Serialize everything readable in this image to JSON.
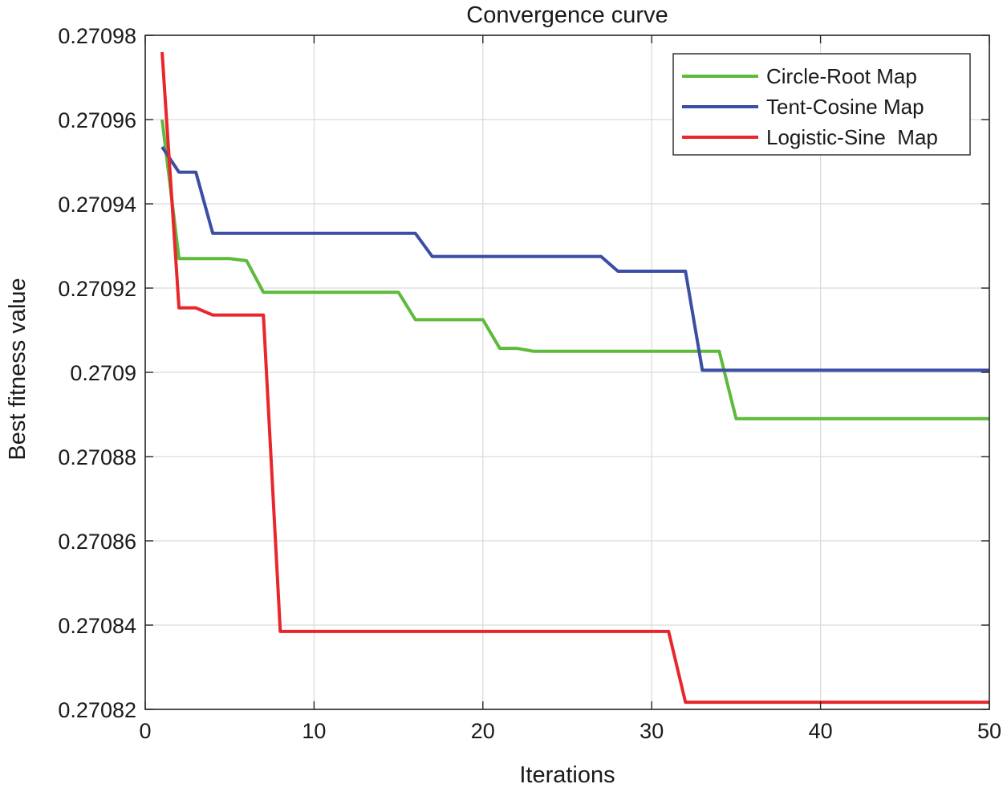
{
  "chart_data": {
    "type": "line",
    "title": "Convergence curve",
    "xlabel": "Iterations",
    "ylabel": "Best fitness value",
    "xlim": [
      0,
      50
    ],
    "ylim": [
      0.27082,
      0.27098
    ],
    "x_ticks": [
      0,
      10,
      20,
      30,
      40,
      50
    ],
    "y_ticks": [
      0.27082,
      0.27084,
      0.27086,
      0.27088,
      0.2709,
      0.27092,
      0.27094,
      0.27096,
      0.27098
    ],
    "x_tick_labels": [
      "0",
      "10",
      "20",
      "30",
      "40",
      "50"
    ],
    "y_tick_labels": [
      "0.27082",
      "0.27084",
      "0.27086",
      "0.27088",
      "0.2709",
      "0.27092",
      "0.27094",
      "0.27096",
      "0.27098"
    ],
    "grid": true,
    "legend_position": "top-right",
    "series": [
      {
        "name": "Circle-Root Map",
        "color": "#5dba3b",
        "points": [
          [
            1,
            0.27096
          ],
          [
            2,
            0.270927
          ],
          [
            3,
            0.270927
          ],
          [
            4,
            0.270927
          ],
          [
            5,
            0.270927
          ],
          [
            6,
            0.2709265
          ],
          [
            7,
            0.270919
          ],
          [
            8,
            0.270919
          ],
          [
            9,
            0.270919
          ],
          [
            10,
            0.270919
          ],
          [
            11,
            0.270919
          ],
          [
            12,
            0.270919
          ],
          [
            13,
            0.270919
          ],
          [
            14,
            0.270919
          ],
          [
            15,
            0.270919
          ],
          [
            16,
            0.2709125
          ],
          [
            17,
            0.2709125
          ],
          [
            18,
            0.2709125
          ],
          [
            19,
            0.2709125
          ],
          [
            20,
            0.2709125
          ],
          [
            21,
            0.2709057
          ],
          [
            22,
            0.2709057
          ],
          [
            23,
            0.270905
          ],
          [
            24,
            0.270905
          ],
          [
            25,
            0.270905
          ],
          [
            26,
            0.270905
          ],
          [
            27,
            0.270905
          ],
          [
            28,
            0.270905
          ],
          [
            29,
            0.270905
          ],
          [
            30,
            0.270905
          ],
          [
            31,
            0.270905
          ],
          [
            32,
            0.270905
          ],
          [
            33,
            0.270905
          ],
          [
            34,
            0.270905
          ],
          [
            35,
            0.270889
          ],
          [
            36,
            0.270889
          ],
          [
            37,
            0.270889
          ],
          [
            38,
            0.270889
          ],
          [
            39,
            0.270889
          ],
          [
            40,
            0.270889
          ],
          [
            41,
            0.270889
          ],
          [
            42,
            0.270889
          ],
          [
            43,
            0.270889
          ],
          [
            44,
            0.270889
          ],
          [
            45,
            0.270889
          ],
          [
            46,
            0.270889
          ],
          [
            47,
            0.270889
          ],
          [
            48,
            0.270889
          ],
          [
            49,
            0.270889
          ],
          [
            50,
            0.270889
          ]
        ]
      },
      {
        "name": "Tent-Cosine Map",
        "color": "#3b4ea3",
        "points": [
          [
            1,
            0.2709535
          ],
          [
            2,
            0.2709475
          ],
          [
            3,
            0.2709475
          ],
          [
            4,
            0.270933
          ],
          [
            5,
            0.270933
          ],
          [
            6,
            0.270933
          ],
          [
            7,
            0.270933
          ],
          [
            8,
            0.270933
          ],
          [
            9,
            0.270933
          ],
          [
            10,
            0.270933
          ],
          [
            11,
            0.270933
          ],
          [
            12,
            0.270933
          ],
          [
            13,
            0.270933
          ],
          [
            14,
            0.270933
          ],
          [
            15,
            0.270933
          ],
          [
            16,
            0.270933
          ],
          [
            17,
            0.2709275
          ],
          [
            18,
            0.2709275
          ],
          [
            19,
            0.2709275
          ],
          [
            20,
            0.2709275
          ],
          [
            21,
            0.2709275
          ],
          [
            22,
            0.2709275
          ],
          [
            23,
            0.2709275
          ],
          [
            24,
            0.2709275
          ],
          [
            25,
            0.2709275
          ],
          [
            26,
            0.2709275
          ],
          [
            27,
            0.2709275
          ],
          [
            28,
            0.270924
          ],
          [
            29,
            0.270924
          ],
          [
            30,
            0.270924
          ],
          [
            31,
            0.270924
          ],
          [
            32,
            0.270924
          ],
          [
            33,
            0.2709005
          ],
          [
            34,
            0.2709005
          ],
          [
            35,
            0.2709005
          ],
          [
            36,
            0.2709005
          ],
          [
            37,
            0.2709005
          ],
          [
            38,
            0.2709005
          ],
          [
            39,
            0.2709005
          ],
          [
            40,
            0.2709005
          ],
          [
            41,
            0.2709005
          ],
          [
            42,
            0.2709005
          ],
          [
            43,
            0.2709005
          ],
          [
            44,
            0.2709005
          ],
          [
            45,
            0.2709005
          ],
          [
            46,
            0.2709005
          ],
          [
            47,
            0.2709005
          ],
          [
            48,
            0.2709005
          ],
          [
            49,
            0.2709005
          ],
          [
            50,
            0.2709005
          ]
        ]
      },
      {
        "name": "Logistic-Sine  Map",
        "color": "#e8262b",
        "points": [
          [
            1,
            0.270976
          ],
          [
            2,
            0.2709153
          ],
          [
            3,
            0.2709153
          ],
          [
            4,
            0.2709136
          ],
          [
            5,
            0.2709136
          ],
          [
            6,
            0.2709136
          ],
          [
            7,
            0.2709136
          ],
          [
            8,
            0.2708385
          ],
          [
            9,
            0.2708385
          ],
          [
            10,
            0.2708385
          ],
          [
            11,
            0.2708385
          ],
          [
            12,
            0.2708385
          ],
          [
            13,
            0.2708385
          ],
          [
            14,
            0.2708385
          ],
          [
            15,
            0.2708385
          ],
          [
            16,
            0.2708385
          ],
          [
            17,
            0.2708385
          ],
          [
            18,
            0.2708385
          ],
          [
            19,
            0.2708385
          ],
          [
            20,
            0.2708385
          ],
          [
            21,
            0.2708385
          ],
          [
            22,
            0.2708385
          ],
          [
            23,
            0.2708385
          ],
          [
            24,
            0.2708385
          ],
          [
            25,
            0.2708385
          ],
          [
            26,
            0.2708385
          ],
          [
            27,
            0.2708385
          ],
          [
            28,
            0.2708385
          ],
          [
            29,
            0.2708385
          ],
          [
            30,
            0.2708385
          ],
          [
            31,
            0.2708385
          ],
          [
            32,
            0.2708217
          ],
          [
            33,
            0.2708217
          ],
          [
            34,
            0.2708217
          ],
          [
            35,
            0.2708217
          ],
          [
            36,
            0.2708217
          ],
          [
            37,
            0.2708217
          ],
          [
            38,
            0.2708217
          ],
          [
            39,
            0.2708217
          ],
          [
            40,
            0.2708217
          ],
          [
            41,
            0.2708217
          ],
          [
            42,
            0.2708217
          ],
          [
            43,
            0.2708217
          ],
          [
            44,
            0.2708217
          ],
          [
            45,
            0.2708217
          ],
          [
            46,
            0.2708217
          ],
          [
            47,
            0.2708217
          ],
          [
            48,
            0.2708217
          ],
          [
            49,
            0.2708217
          ],
          [
            50,
            0.2708217
          ]
        ]
      }
    ]
  }
}
